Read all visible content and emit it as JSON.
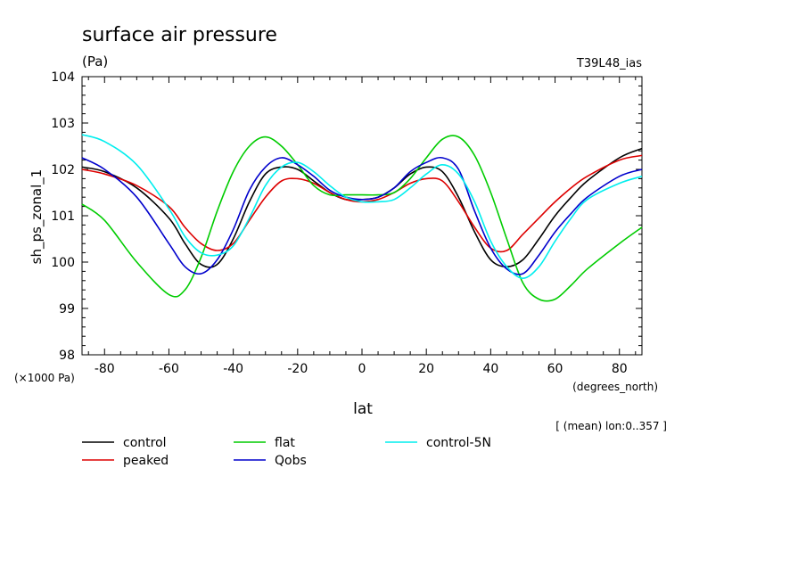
{
  "chart_data": {
    "type": "line",
    "title": "surface air pressure",
    "units": "(Pa)",
    "run_label": "T39L48_ias",
    "xlabel": "lat",
    "xunits": "(degrees_north)",
    "ylabel": "sh_ps_zonal_1",
    "yscale_note": "(×1000 Pa)",
    "mean_note": "[ (mean) lon:0..357 ]",
    "xlim": [
      -87,
      87
    ],
    "ylim": [
      98,
      104
    ],
    "xticks": [
      -80,
      -60,
      -40,
      -20,
      0,
      20,
      40,
      60,
      80
    ],
    "yticks": [
      98,
      99,
      100,
      101,
      102,
      103,
      104
    ],
    "grid": false,
    "legend_position": "bottom",
    "x": [
      -87,
      -80,
      -70,
      -60,
      -55,
      -50,
      -45,
      -40,
      -35,
      -30,
      -25,
      -20,
      -15,
      -10,
      -5,
      0,
      5,
      10,
      15,
      20,
      25,
      30,
      35,
      40,
      45,
      50,
      55,
      60,
      65,
      70,
      80,
      87
    ],
    "series": [
      {
        "name": "control",
        "color": "#000000",
        "values": [
          102.05,
          101.95,
          101.6,
          100.95,
          100.4,
          99.95,
          99.95,
          100.5,
          101.3,
          101.9,
          102.05,
          102.0,
          101.75,
          101.5,
          101.35,
          101.35,
          101.4,
          101.6,
          101.9,
          102.05,
          101.95,
          101.4,
          100.65,
          100.05,
          99.9,
          100.05,
          100.5,
          101.0,
          101.4,
          101.75,
          102.25,
          102.45
        ]
      },
      {
        "name": "peaked",
        "color": "#dd0000",
        "values": [
          102.0,
          101.9,
          101.65,
          101.2,
          100.75,
          100.4,
          100.25,
          100.4,
          100.9,
          101.4,
          101.75,
          101.8,
          101.7,
          101.5,
          101.35,
          101.3,
          101.35,
          101.5,
          101.7,
          101.8,
          101.75,
          101.3,
          100.75,
          100.3,
          100.25,
          100.6,
          100.95,
          101.3,
          101.6,
          101.85,
          102.2,
          102.3
        ]
      },
      {
        "name": "flat",
        "color": "#00cc00",
        "values": [
          101.25,
          100.9,
          100.0,
          99.3,
          99.4,
          100.1,
          101.1,
          101.95,
          102.5,
          102.7,
          102.5,
          102.1,
          101.65,
          101.45,
          101.45,
          101.45,
          101.45,
          101.5,
          101.8,
          102.25,
          102.65,
          102.7,
          102.3,
          101.5,
          100.5,
          99.55,
          99.2,
          99.2,
          99.5,
          99.85,
          100.4,
          100.75
        ]
      },
      {
        "name": "Qobs",
        "color": "#0000cc",
        "values": [
          102.25,
          102.0,
          101.4,
          100.4,
          99.9,
          99.75,
          100.05,
          100.7,
          101.55,
          102.05,
          102.25,
          102.1,
          101.85,
          101.55,
          101.4,
          101.35,
          101.4,
          101.6,
          101.95,
          102.15,
          102.25,
          102.0,
          101.1,
          100.3,
          99.85,
          99.75,
          100.15,
          100.65,
          101.05,
          101.4,
          101.85,
          102.0
        ]
      },
      {
        "name": "control-5N",
        "color": "#00eeee",
        "values": [
          102.75,
          102.6,
          102.1,
          101.15,
          100.55,
          100.2,
          100.15,
          100.35,
          100.95,
          101.65,
          102.05,
          102.15,
          101.95,
          101.65,
          101.4,
          101.3,
          101.3,
          101.35,
          101.6,
          101.9,
          102.1,
          101.9,
          101.3,
          100.45,
          99.9,
          99.65,
          99.9,
          100.45,
          100.95,
          101.35,
          101.7,
          101.85
        ]
      }
    ]
  }
}
